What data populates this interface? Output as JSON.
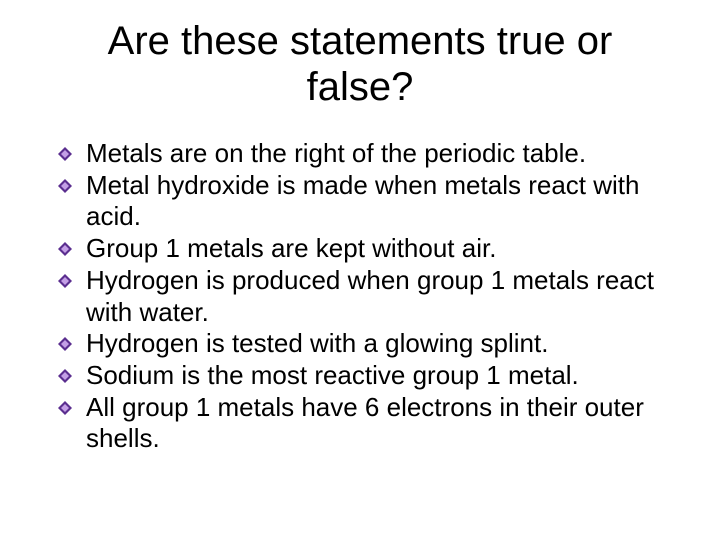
{
  "title": "Are these statements true or false?",
  "statements": [
    "Metals are on the right of the periodic table.",
    "Metal hydroxide is made when metals react with acid.",
    "Group 1 metals are kept without air.",
    "Hydrogen is produced when group 1 metals react with water.",
    "Hydrogen is tested with a glowing splint.",
    "Sodium is the most reactive group 1 metal.",
    "All group 1 metals have 6 electrons in their outer shells."
  ],
  "bullet": {
    "outer_color": "#5b2e8f",
    "inner_color": "#c49fe6",
    "size": 14
  },
  "font_family": "Comic Sans MS",
  "title_fontsize": 40,
  "body_fontsize": 26,
  "text_color": "#000000",
  "background_color": "#ffffff"
}
